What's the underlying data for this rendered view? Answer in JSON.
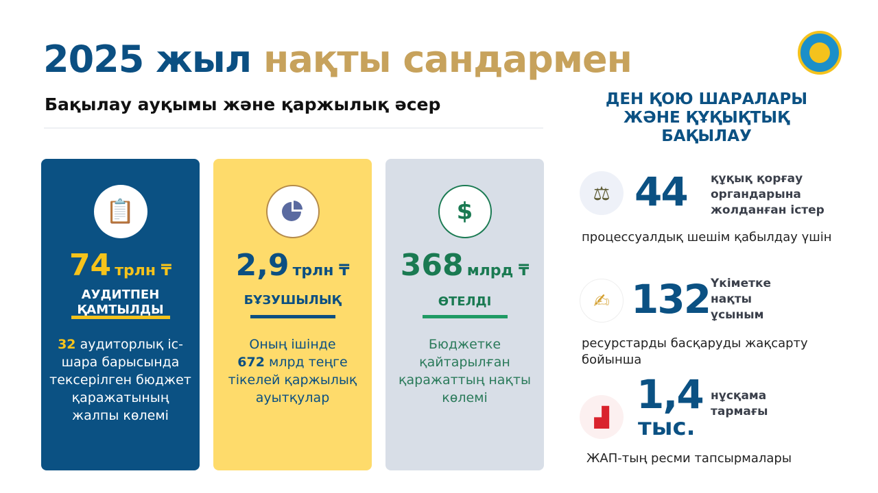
{
  "header": {
    "title_part1": "2025 жыл",
    "title_part2": "нақты сандармен",
    "subtitle": "Бақылау ауқымы және қаржылық әсер"
  },
  "colors": {
    "navy": "#0b5183",
    "gold": "#c7a25c",
    "yellow": "#f6c31b",
    "green": "#1a7a52"
  },
  "cards": [
    {
      "icon": "clipboard-check-icon",
      "value": "74",
      "unit": "трлн ₸",
      "label_line1": "АУДИТПЕН",
      "label_line2": "ҚАМТЫЛДЫ",
      "desc_highlight": "32",
      "desc": "аудиторлық іс-шара барысында тексерілген бюджет қаражатының жалпы көлемі"
    },
    {
      "icon": "pie-chart-icon",
      "value": "2,9",
      "unit": "трлн ₸",
      "label": "БҰЗУШЫЛЫҚ",
      "desc_pre": "Оның ішінде",
      "desc_highlight": "672",
      "desc": "млрд теңге тікелей қаржылық ауытқулар"
    },
    {
      "icon": "hand-money-icon",
      "value": "368",
      "unit": "млрд ₸",
      "label": "ӨТЕЛДІ",
      "desc": "Бюджетке қайтарылған қаражаттың нақты көлемі"
    }
  ],
  "right": {
    "heading": "ДЕН ҚОЮ ШАРАЛАРЫ ЖӘНЕ ҚҰҚЫҚТЫҚ БАҚЫЛАУ",
    "items": [
      {
        "icon": "scales-icon",
        "value": "44",
        "label": "құқық қорғау органдарына жолданған істер",
        "desc": "процессуалдық шешім қабылдау үшін"
      },
      {
        "icon": "document-sign-icon",
        "value": "132",
        "label": "Үкіметке нақты ұсыным",
        "desc": "ресурстарды басқаруды жақсарту бойынша"
      },
      {
        "icon": "stamp-icon",
        "value": "1,4",
        "value_unit": "тыс.",
        "label": "нұсқама тармағы",
        "desc": "ЖАП-тың ресми тапсырмалары"
      }
    ]
  }
}
